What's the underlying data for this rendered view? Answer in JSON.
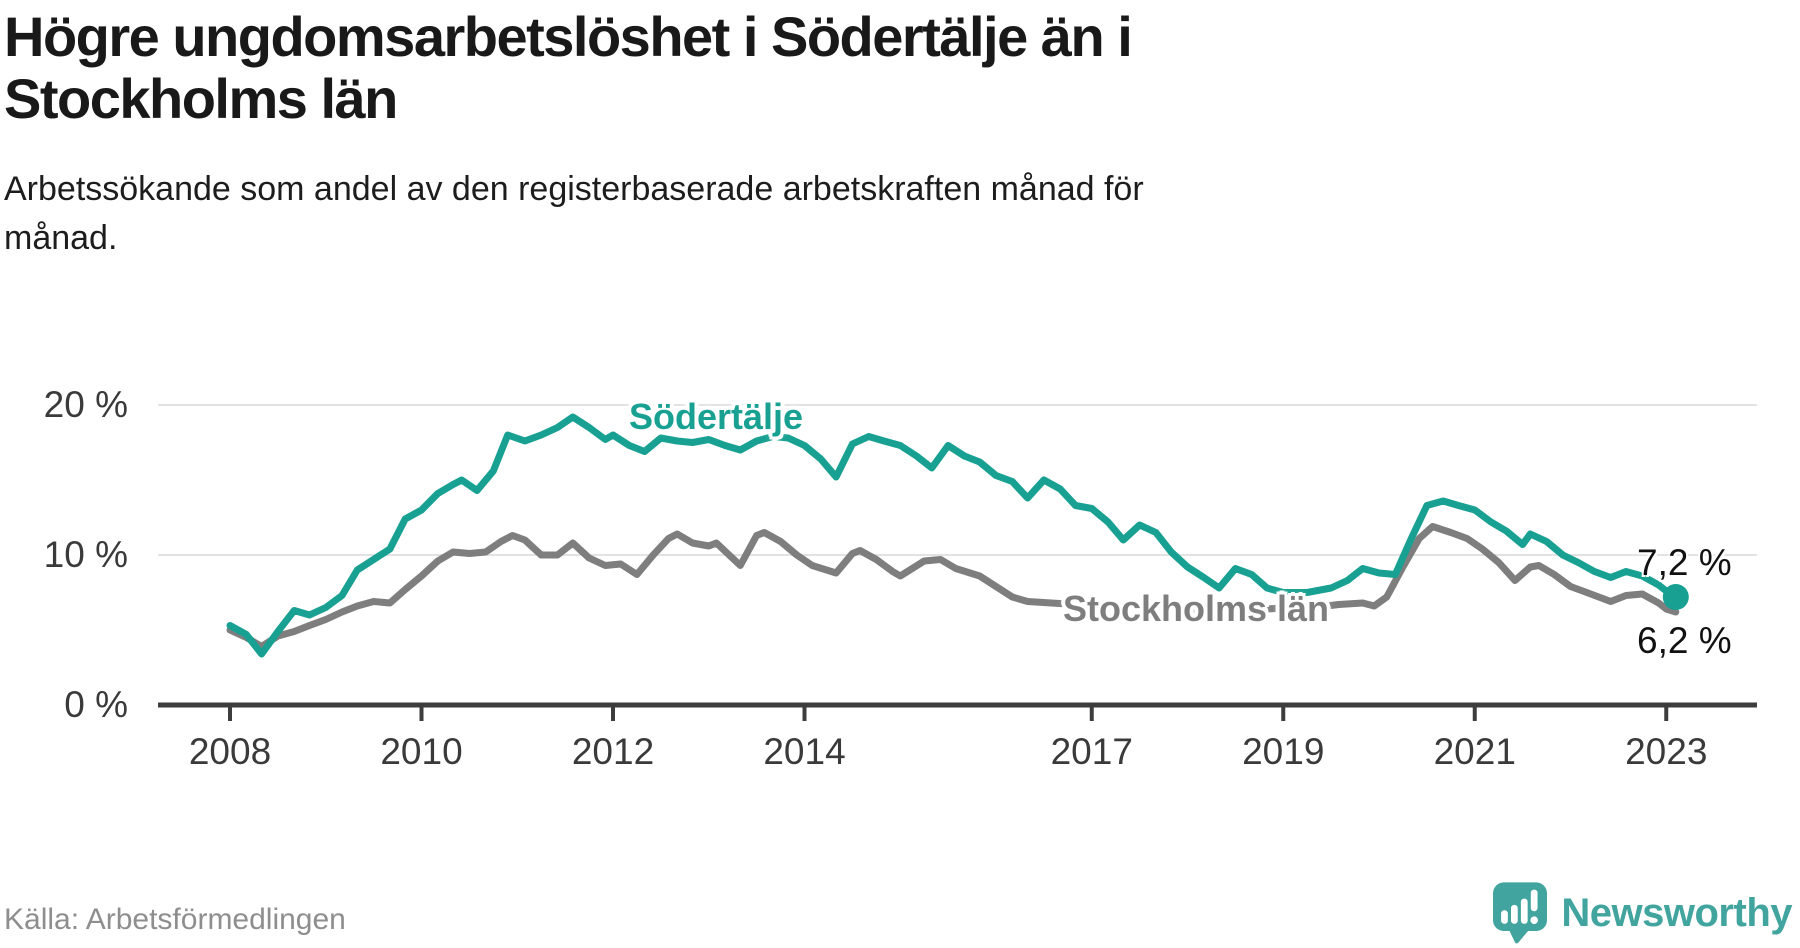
{
  "header": {
    "title": "Högre ungdomsarbetslöshet i Södertälje än i\nStockholms län",
    "subtitle": "Arbetssökande som andel av den registerbaserade arbetskraften månad för\nmånad."
  },
  "footer": {
    "source": "Källa: Arbetsförmedlingen",
    "brand": "Newsworthy",
    "logo_icon": "newsworthy-speech-bubble-bar-chart-exclamation"
  },
  "colors": {
    "teal": "#18a192",
    "gray": "#7e7e7e",
    "grid": "#e2e2e2",
    "axis": "#3d3d3d",
    "tick_text": "#3a3a3a",
    "title_text": "#191919",
    "subtitle_text": "#1d1d1d",
    "value_text": "#111111",
    "source_text": "#8e8e8e",
    "logo_teal": "#42a49e",
    "background": "#ffffff"
  },
  "chart_data": {
    "type": "line",
    "title": "Högre ungdomsarbetslöshet i Södertälje än i Stockholms län",
    "subtitle": "Arbetssökande som andel av den registerbaserade arbetskraften månad för månad.",
    "unit": "%",
    "grid": "horizontal",
    "legend_position": "inline-labels",
    "xlim": [
      2007.25,
      2023.95
    ],
    "ylim": [
      0,
      21
    ],
    "x_ticks": [
      2008,
      2010,
      2012,
      2014,
      2017,
      2019,
      2021,
      2023
    ],
    "y_ticks": [
      {
        "value": 20,
        "label": "20 %"
      },
      {
        "value": 10,
        "label": "10 %"
      },
      {
        "value": 0,
        "label": "0 %"
      }
    ],
    "series": [
      {
        "name": "Södertälje",
        "color": "#18a192",
        "end_label": "7,2 %",
        "end_dot": true,
        "points": [
          [
            2008.0,
            5.3
          ],
          [
            2008.17,
            4.7
          ],
          [
            2008.33,
            3.4
          ],
          [
            2008.5,
            4.9
          ],
          [
            2008.67,
            6.3
          ],
          [
            2008.83,
            6.0
          ],
          [
            2009.0,
            6.5
          ],
          [
            2009.17,
            7.3
          ],
          [
            2009.33,
            9.0
          ],
          [
            2009.5,
            9.7
          ],
          [
            2009.67,
            10.4
          ],
          [
            2009.83,
            12.4
          ],
          [
            2010.0,
            13.0
          ],
          [
            2010.17,
            14.1
          ],
          [
            2010.33,
            14.7
          ],
          [
            2010.42,
            15.0
          ],
          [
            2010.58,
            14.3
          ],
          [
            2010.75,
            15.6
          ],
          [
            2010.9,
            18.0
          ],
          [
            2011.08,
            17.6
          ],
          [
            2011.25,
            18.0
          ],
          [
            2011.42,
            18.5
          ],
          [
            2011.58,
            19.2
          ],
          [
            2011.75,
            18.5
          ],
          [
            2011.92,
            17.7
          ],
          [
            2012.0,
            18.0
          ],
          [
            2012.17,
            17.3
          ],
          [
            2012.33,
            16.9
          ],
          [
            2012.5,
            17.8
          ],
          [
            2012.67,
            17.6
          ],
          [
            2012.83,
            17.5
          ],
          [
            2013.0,
            17.7
          ],
          [
            2013.17,
            17.3
          ],
          [
            2013.33,
            17.0
          ],
          [
            2013.5,
            17.6
          ],
          [
            2013.67,
            17.9
          ],
          [
            2013.83,
            17.8
          ],
          [
            2014.0,
            17.3
          ],
          [
            2014.17,
            16.4
          ],
          [
            2014.33,
            15.2
          ],
          [
            2014.5,
            17.4
          ],
          [
            2014.67,
            17.9
          ],
          [
            2014.83,
            17.6
          ],
          [
            2015.0,
            17.3
          ],
          [
            2015.17,
            16.6
          ],
          [
            2015.33,
            15.8
          ],
          [
            2015.5,
            17.3
          ],
          [
            2015.67,
            16.6
          ],
          [
            2015.83,
            16.2
          ],
          [
            2016.0,
            15.3
          ],
          [
            2016.17,
            14.9
          ],
          [
            2016.33,
            13.8
          ],
          [
            2016.5,
            15.0
          ],
          [
            2016.67,
            14.4
          ],
          [
            2016.83,
            13.3
          ],
          [
            2017.0,
            13.1
          ],
          [
            2017.17,
            12.2
          ],
          [
            2017.33,
            11.0
          ],
          [
            2017.5,
            12.0
          ],
          [
            2017.67,
            11.5
          ],
          [
            2017.83,
            10.2
          ],
          [
            2018.0,
            9.2
          ],
          [
            2018.17,
            8.5
          ],
          [
            2018.33,
            7.8
          ],
          [
            2018.5,
            9.1
          ],
          [
            2018.67,
            8.7
          ],
          [
            2018.83,
            7.8
          ],
          [
            2019.0,
            7.5
          ],
          [
            2019.25,
            7.5
          ],
          [
            2019.5,
            7.8
          ],
          [
            2019.67,
            8.3
          ],
          [
            2019.83,
            9.1
          ],
          [
            2020.0,
            8.8
          ],
          [
            2020.17,
            8.7
          ],
          [
            2020.33,
            11.0
          ],
          [
            2020.5,
            13.3
          ],
          [
            2020.67,
            13.6
          ],
          [
            2020.83,
            13.3
          ],
          [
            2021.0,
            13.0
          ],
          [
            2021.17,
            12.2
          ],
          [
            2021.33,
            11.6
          ],
          [
            2021.5,
            10.7
          ],
          [
            2021.58,
            11.4
          ],
          [
            2021.75,
            10.9
          ],
          [
            2021.92,
            10.0
          ],
          [
            2022.08,
            9.5
          ],
          [
            2022.25,
            8.9
          ],
          [
            2022.42,
            8.5
          ],
          [
            2022.58,
            8.9
          ],
          [
            2022.75,
            8.6
          ],
          [
            2022.92,
            8.0
          ],
          [
            2023.0,
            7.6
          ],
          [
            2023.1,
            7.2
          ]
        ]
      },
      {
        "name": "Stockholms län",
        "color": "#7e7e7e",
        "end_label": "6,2 %",
        "end_dot": false,
        "points": [
          [
            2008.0,
            5.0
          ],
          [
            2008.17,
            4.5
          ],
          [
            2008.33,
            3.9
          ],
          [
            2008.5,
            4.6
          ],
          [
            2008.67,
            4.9
          ],
          [
            2008.83,
            5.3
          ],
          [
            2009.0,
            5.7
          ],
          [
            2009.17,
            6.2
          ],
          [
            2009.33,
            6.6
          ],
          [
            2009.5,
            6.9
          ],
          [
            2009.67,
            6.8
          ],
          [
            2009.83,
            7.7
          ],
          [
            2010.0,
            8.6
          ],
          [
            2010.17,
            9.6
          ],
          [
            2010.33,
            10.2
          ],
          [
            2010.5,
            10.1
          ],
          [
            2010.67,
            10.2
          ],
          [
            2010.83,
            10.9
          ],
          [
            2010.95,
            11.3
          ],
          [
            2011.08,
            11.0
          ],
          [
            2011.25,
            10.0
          ],
          [
            2011.42,
            10.0
          ],
          [
            2011.58,
            10.8
          ],
          [
            2011.75,
            9.8
          ],
          [
            2011.92,
            9.3
          ],
          [
            2012.08,
            9.4
          ],
          [
            2012.25,
            8.7
          ],
          [
            2012.42,
            10.0
          ],
          [
            2012.58,
            11.1
          ],
          [
            2012.67,
            11.4
          ],
          [
            2012.83,
            10.8
          ],
          [
            2013.0,
            10.6
          ],
          [
            2013.08,
            10.8
          ],
          [
            2013.33,
            9.3
          ],
          [
            2013.5,
            11.3
          ],
          [
            2013.58,
            11.5
          ],
          [
            2013.75,
            10.9
          ],
          [
            2013.92,
            10.0
          ],
          [
            2014.08,
            9.3
          ],
          [
            2014.33,
            8.8
          ],
          [
            2014.5,
            10.1
          ],
          [
            2014.58,
            10.3
          ],
          [
            2014.75,
            9.7
          ],
          [
            2014.92,
            8.9
          ],
          [
            2015.0,
            8.6
          ],
          [
            2015.25,
            9.6
          ],
          [
            2015.42,
            9.7
          ],
          [
            2015.58,
            9.1
          ],
          [
            2015.83,
            8.6
          ],
          [
            2016.0,
            7.9
          ],
          [
            2016.17,
            7.2
          ],
          [
            2016.33,
            6.9
          ],
          [
            2016.58,
            6.8
          ],
          [
            2016.83,
            6.7
          ],
          [
            2017.08,
            6.6
          ],
          [
            2017.33,
            6.5
          ],
          [
            2017.58,
            6.6
          ],
          [
            2017.83,
            6.5
          ],
          [
            2018.08,
            6.4
          ],
          [
            2018.33,
            6.4
          ],
          [
            2018.58,
            6.5
          ],
          [
            2018.83,
            6.4
          ],
          [
            2019.08,
            6.5
          ],
          [
            2019.33,
            6.5
          ],
          [
            2019.58,
            6.7
          ],
          [
            2019.83,
            6.8
          ],
          [
            2019.95,
            6.6
          ],
          [
            2020.08,
            7.2
          ],
          [
            2020.25,
            9.2
          ],
          [
            2020.42,
            11.1
          ],
          [
            2020.56,
            11.9
          ],
          [
            2020.75,
            11.5
          ],
          [
            2020.92,
            11.1
          ],
          [
            2021.08,
            10.4
          ],
          [
            2021.25,
            9.5
          ],
          [
            2021.42,
            8.3
          ],
          [
            2021.58,
            9.2
          ],
          [
            2021.67,
            9.3
          ],
          [
            2021.83,
            8.7
          ],
          [
            2022.0,
            7.9
          ],
          [
            2022.17,
            7.5
          ],
          [
            2022.42,
            6.9
          ],
          [
            2022.58,
            7.3
          ],
          [
            2022.75,
            7.4
          ],
          [
            2022.92,
            6.8
          ],
          [
            2023.0,
            6.4
          ],
          [
            2023.1,
            6.2
          ]
        ]
      }
    ]
  }
}
